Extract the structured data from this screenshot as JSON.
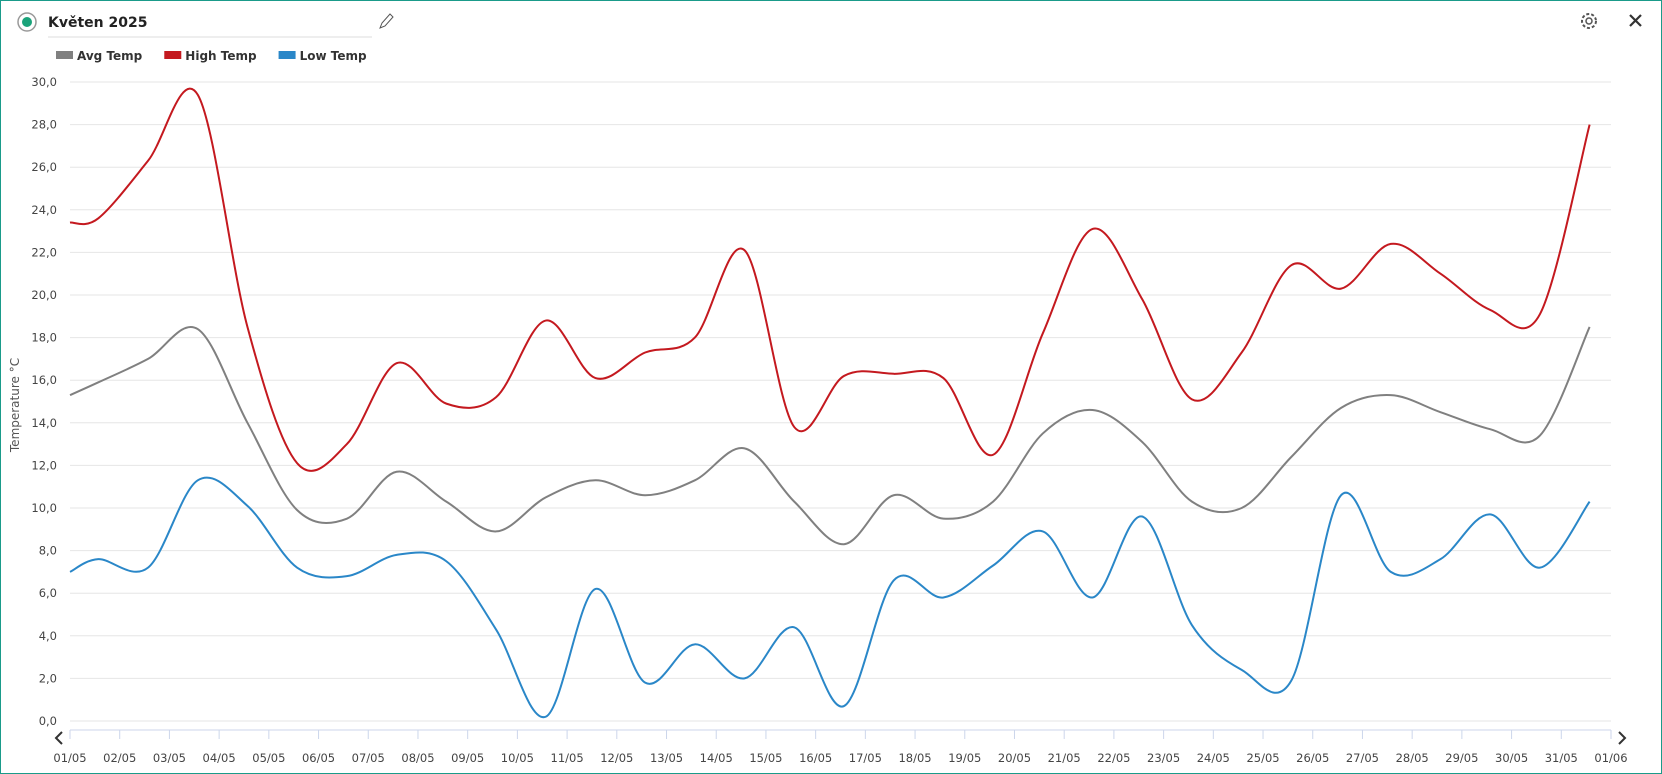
{
  "chart_data": {
    "type": "line",
    "title": "Květen 2025",
    "y_label": "Temperature °C",
    "categories": [
      "01/05",
      "02/05",
      "03/05",
      "04/05",
      "05/05",
      "06/05",
      "07/05",
      "08/05",
      "09/05",
      "10/05",
      "11/05",
      "12/05",
      "13/05",
      "14/05",
      "15/05",
      "16/05",
      "17/05",
      "18/05",
      "19/05",
      "20/05",
      "21/05",
      "22/05",
      "23/05",
      "24/05",
      "25/05",
      "26/05",
      "27/05",
      "28/05",
      "29/05",
      "30/05",
      "31/05",
      "01/06"
    ],
    "ylim": [
      0,
      30
    ],
    "yticks": [
      {
        "value": 0,
        "label": "0,0"
      },
      {
        "value": 2,
        "label": "2,0"
      },
      {
        "value": 4,
        "label": "4,0"
      },
      {
        "value": 6,
        "label": "6,0"
      },
      {
        "value": 8,
        "label": "8,0"
      },
      {
        "value": 10,
        "label": "10,0"
      },
      {
        "value": 12,
        "label": "12,0"
      },
      {
        "value": 14,
        "label": "14,0"
      },
      {
        "value": 16,
        "label": "16,0"
      },
      {
        "value": 18,
        "label": "18,0"
      },
      {
        "value": 20,
        "label": "20,0"
      },
      {
        "value": 22,
        "label": "22,0"
      },
      {
        "value": 24,
        "label": "24,0"
      },
      {
        "value": 26,
        "label": "26,0"
      },
      {
        "value": 28,
        "label": "28,0"
      },
      {
        "value": 30,
        "label": "30,0"
      }
    ],
    "grid": true,
    "series": [
      {
        "name": "Avg Temp",
        "color": "#808080",
        "values": [
          15.3,
          15.9,
          17.0,
          18.4,
          14.0,
          9.9,
          9.5,
          11.7,
          10.3,
          8.9,
          10.5,
          11.3,
          10.6,
          11.3,
          12.8,
          10.3,
          8.3,
          10.6,
          9.5,
          10.3,
          13.5,
          14.6,
          13.1,
          10.3,
          10.0,
          12.4,
          14.7,
          15.3,
          14.5,
          13.7,
          13.4,
          18.5
        ]
      },
      {
        "name": "High Temp",
        "color": "#c4191f",
        "values": [
          23.4,
          23.6,
          26.3,
          29.4,
          18.5,
          12.1,
          13.0,
          16.8,
          14.9,
          15.2,
          18.8,
          16.1,
          17.3,
          18.0,
          22.1,
          13.8,
          16.2,
          16.3,
          16.1,
          12.5,
          18.2,
          23.1,
          19.8,
          15.1,
          17.3,
          21.4,
          20.3,
          22.4,
          21.0,
          19.3,
          19.1,
          28.0
        ]
      },
      {
        "name": "Low Temp",
        "color": "#2a87c8",
        "values": [
          7.0,
          7.6,
          7.2,
          11.3,
          10.1,
          7.2,
          6.8,
          7.8,
          7.5,
          4.3,
          0.2,
          6.2,
          1.8,
          3.6,
          2.0,
          4.4,
          0.7,
          6.6,
          5.8,
          7.3,
          8.9,
          5.8,
          9.6,
          4.5,
          2.4,
          1.9,
          10.6,
          7.0,
          7.6,
          9.7,
          7.2,
          10.3
        ]
      }
    ]
  }
}
